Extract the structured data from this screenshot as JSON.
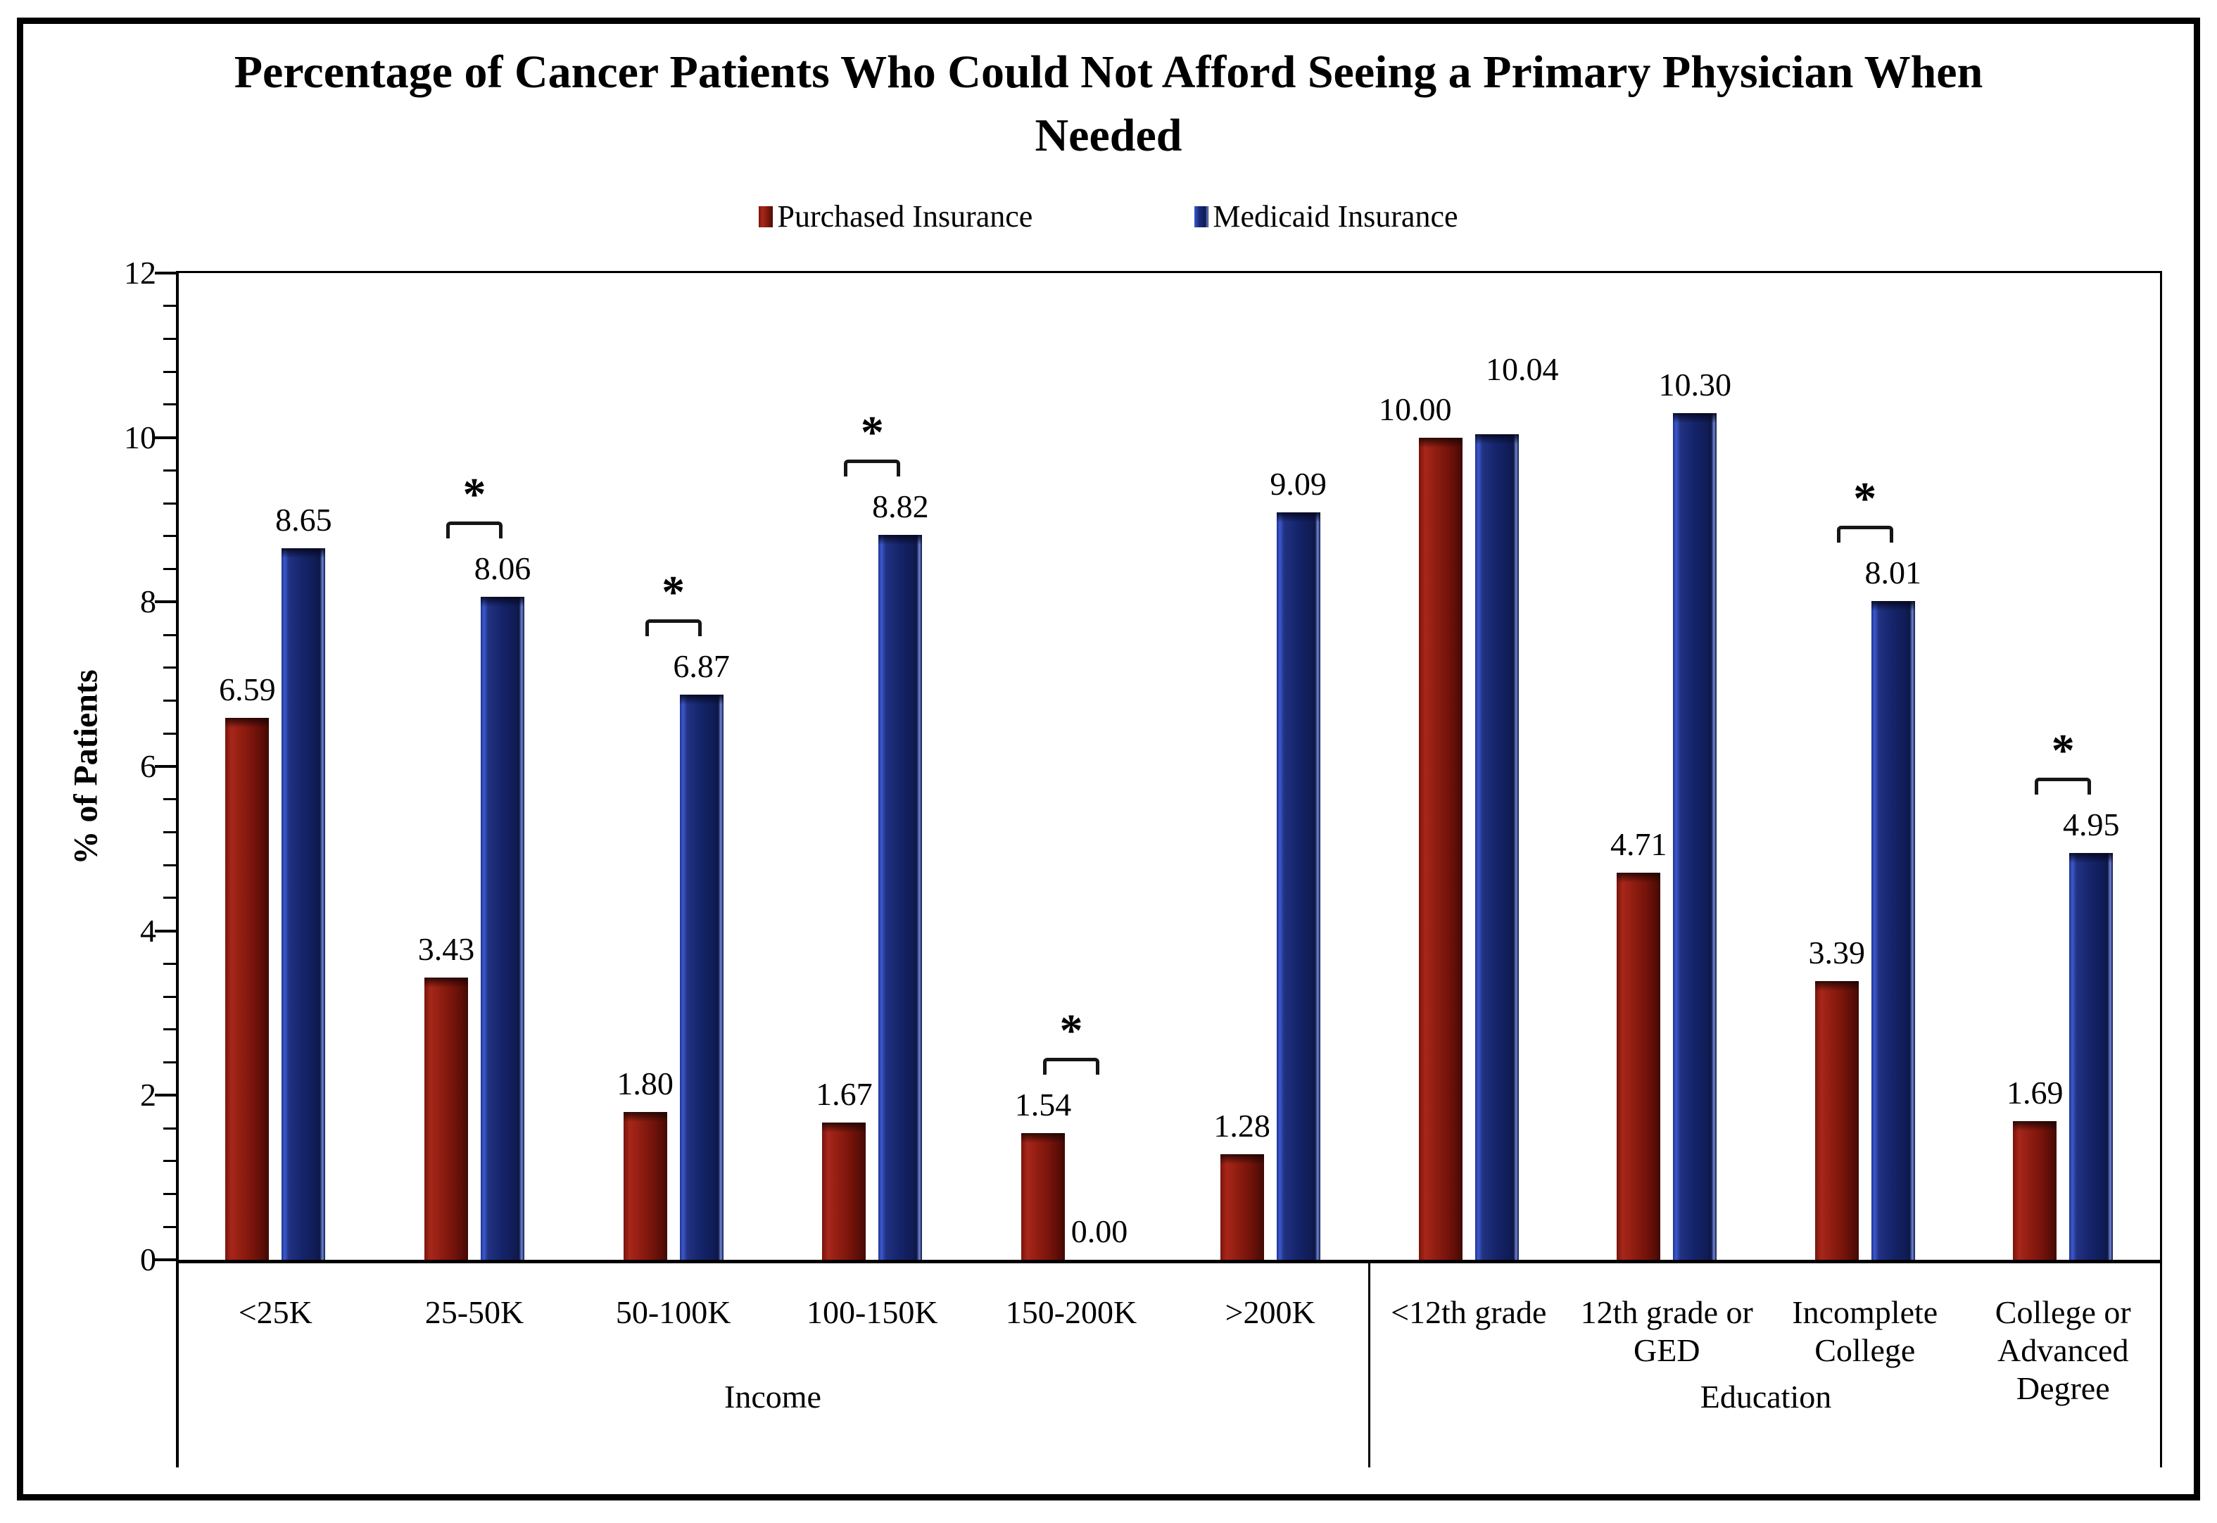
{
  "title": "Percentage of Cancer Patients Who Could Not Afford Seeing a Primary Physician When Needed",
  "legend": [
    {
      "label": "Purchased Insurance",
      "color": "#8C1B10"
    },
    {
      "label": "Medicaid Insurance",
      "color": "#13226B"
    }
  ],
  "y_axis": {
    "label": "% of Patients",
    "min": 0,
    "max": 12,
    "major_step": 2,
    "minor_step": 0.4,
    "tick_labels": [
      "0",
      "2",
      "4",
      "6",
      "8",
      "10",
      "12"
    ]
  },
  "chart_data": {
    "type": "bar",
    "title": "Percentage of Cancer Patients Who Could Not Afford Seeing a Primary Physician When Needed",
    "xlabel": "",
    "ylabel": "% of Patients",
    "ylim": [
      0,
      12
    ],
    "grid": false,
    "legend_position": "top",
    "categories": [
      "<25K",
      "25-50K",
      "50-100K",
      "100-150K",
      "150-200K",
      ">200K",
      "<12th grade",
      "12th grade or GED",
      "Incomplete College",
      "College or Advanced Degree"
    ],
    "category_display": [
      "<25K",
      "25-50K",
      "50-100K",
      "100-150K",
      "150-200K",
      ">200K",
      "<12th grade",
      "12th grade or\nGED",
      "Incomplete\nCollege",
      "College or\nAdvanced\nDegree"
    ],
    "series": [
      {
        "name": "Purchased Insurance",
        "color": "#8C1B10",
        "values": [
          6.59,
          3.43,
          1.8,
          1.67,
          1.54,
          1.28,
          10.0,
          4.71,
          3.39,
          1.69
        ],
        "value_labels": [
          "6.59",
          "3.43",
          "1.80",
          "1.67",
          "1.54",
          "1.28",
          "10.00",
          "4.71",
          "3.39",
          "1.69"
        ]
      },
      {
        "name": "Medicaid Insurance",
        "color": "#13226B",
        "values": [
          8.65,
          8.06,
          6.87,
          8.82,
          0.0,
          9.09,
          10.04,
          10.3,
          8.01,
          4.95
        ],
        "value_labels": [
          "8.65",
          "8.06",
          "6.87",
          "8.82",
          "0.00",
          "9.09",
          "10.04",
          "10.30",
          "8.01",
          "4.95"
        ]
      }
    ],
    "significance_marker": "*",
    "significance": [
      false,
      true,
      true,
      true,
      true,
      false,
      false,
      false,
      true,
      true
    ],
    "groups": [
      {
        "label": "Income",
        "count": 6
      },
      {
        "label": "Education",
        "count": 4
      }
    ]
  }
}
